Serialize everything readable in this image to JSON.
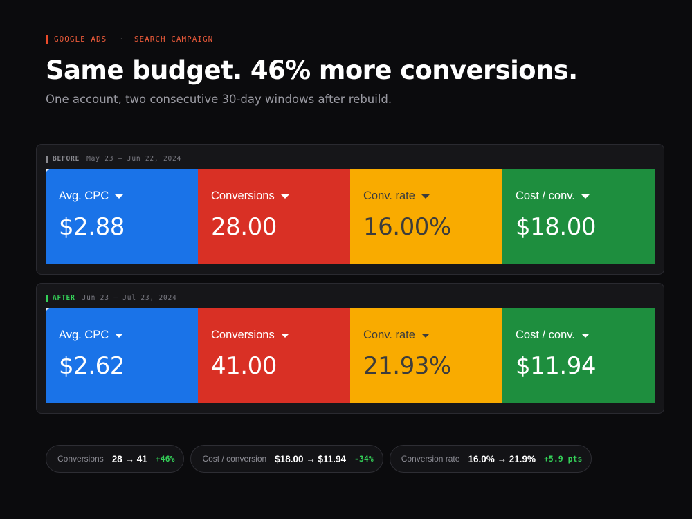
{
  "header": {
    "eyebrow_platform": "GOOGLE ADS",
    "eyebrow_separator": "·",
    "eyebrow_campaign": "SEARCH CAMPAIGN",
    "title": "Same budget. 46% more conversions.",
    "subtitle": "One account, two consecutive 30-day windows after rebuild."
  },
  "before": {
    "tag": "BEFORE",
    "range": "May 23 – Jun 22, 2024",
    "metrics": [
      {
        "label": "Avg. CPC",
        "value": "$2.88"
      },
      {
        "label": "Conversions",
        "value": "28.00"
      },
      {
        "label": "Conv. rate",
        "value": "16.00%"
      },
      {
        "label": "Cost / conv.",
        "value": "$18.00"
      }
    ]
  },
  "after": {
    "tag": "AFTER",
    "range": "Jun 23 – Jul 23, 2024",
    "metrics": [
      {
        "label": "Avg. CPC",
        "value": "$2.62"
      },
      {
        "label": "Conversions",
        "value": "41.00"
      },
      {
        "label": "Conv. rate",
        "value": "21.93%"
      },
      {
        "label": "Cost / conv.",
        "value": "$11.94"
      }
    ]
  },
  "summary": [
    {
      "label": "Conversions",
      "value": "28 → 41",
      "delta": "+46%"
    },
    {
      "label": "Cost / conversion",
      "value": "$18.00 → $11.94",
      "delta": "-34%"
    },
    {
      "label": "Conversion rate",
      "value": "16.0% → 21.9%",
      "delta": "+5.9 pts"
    }
  ],
  "colors": {
    "background": "#0b0b0d",
    "accent": "#ea4b2a",
    "tile_blue": "#1a73e8",
    "tile_red": "#d93025",
    "tile_yellow": "#f9ab00",
    "tile_green": "#1e8e3e",
    "positive": "#34d058"
  },
  "icons": {
    "metric_dropdown": "caret-down-icon"
  }
}
